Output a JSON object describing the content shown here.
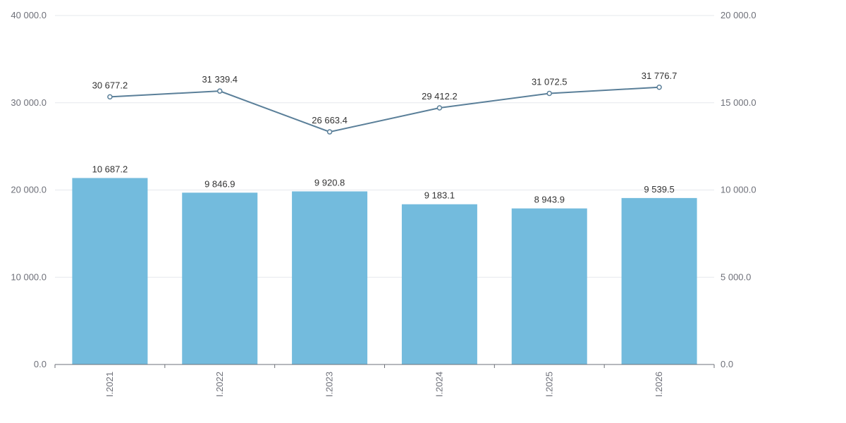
{
  "chart_data": {
    "type": "bar",
    "categories": [
      "I.2021",
      "I.2022",
      "I.2023",
      "I.2024",
      "I.2025",
      "I.2026"
    ],
    "series": [
      {
        "type": "bar",
        "axis": "right",
        "values": [
          10687.2,
          9846.9,
          9920.8,
          9183.1,
          8943.9,
          9539.5
        ],
        "labels": [
          "10 687.2",
          "9 846.9",
          "9 920.8",
          "9 183.1",
          "8 943.9",
          "9 539.5"
        ],
        "color": "#73bbdd"
      },
      {
        "type": "line",
        "axis": "left",
        "values": [
          30677.2,
          31339.4,
          26663.4,
          29412.2,
          31072.5,
          31776.7
        ],
        "labels": [
          "30 677.2",
          "31 339.4",
          "26 663.4",
          "29 412.2",
          "31 072.5",
          "31 776.7"
        ],
        "color": "#5a7f99"
      }
    ],
    "y_left": {
      "range": [
        0,
        40000
      ],
      "ticks": [
        0,
        10000,
        20000,
        30000,
        40000
      ],
      "tick_labels": [
        "0.0",
        "10 000.0",
        "20 000.0",
        "30 000.0",
        "40 000.0"
      ]
    },
    "y_right": {
      "range": [
        0,
        20000
      ],
      "ticks": [
        0,
        5000,
        10000,
        15000,
        20000
      ],
      "tick_labels": [
        "0.0",
        "5 000.0",
        "10 000.0",
        "15 000.0",
        "20 000.0"
      ]
    },
    "grid": true,
    "colors": {
      "grid": "#e6e8ee",
      "axis": "#6e7079",
      "tick_text": "#6e7079",
      "label_text": "#333333"
    }
  }
}
